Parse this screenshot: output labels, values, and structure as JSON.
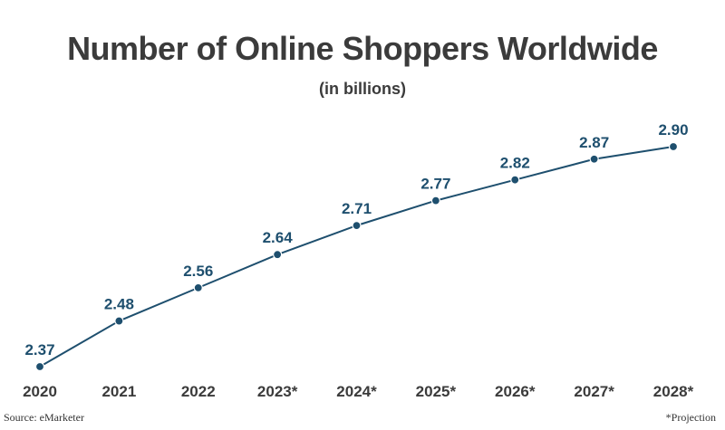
{
  "chart_data": {
    "type": "line",
    "title": "Number of Online Shoppers Worldwide",
    "subtitle": "(in billions)",
    "categories": [
      "2020",
      "2021",
      "2022",
      "2023*",
      "2024*",
      "2025*",
      "2026*",
      "2027*",
      "2028*"
    ],
    "series": [
      {
        "values": [
          2.37,
          2.48,
          2.56,
          2.64,
          2.71,
          2.77,
          2.82,
          2.87,
          2.9
        ],
        "labels": [
          "2.37",
          "2.48",
          "2.56",
          "2.64",
          "2.71",
          "2.77",
          "2.82",
          "2.87",
          "2.90"
        ],
        "color": "#1e4f6e"
      }
    ],
    "ylim": [
      2.37,
      2.9
    ],
    "grid": false,
    "label_color": "#1e4f6e",
    "axis_label_color": "#3b3b3b"
  },
  "footer": {
    "source": "Source: eMarketer",
    "note": "*Projection"
  }
}
